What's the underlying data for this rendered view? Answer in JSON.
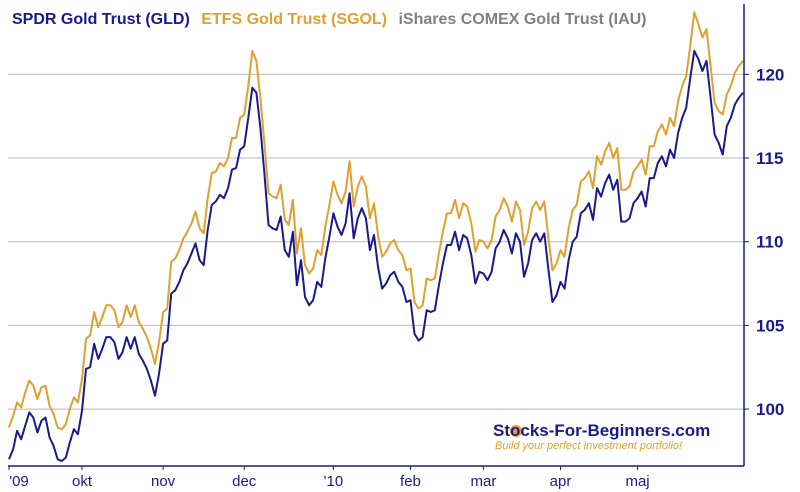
{
  "chart_data": {
    "type": "line",
    "title_parts": [
      {
        "text": "SPDR Gold Trust (GLD)",
        "color": "#1a1a8c"
      },
      {
        "text": "ETFS Gold Trust (SGOL)",
        "color": "#e0a030"
      },
      {
        "text": "iShares COMEX Gold Trust (IAU)",
        "color": "#808080"
      }
    ],
    "x_tick_labels": [
      "'09",
      "okt",
      "nov",
      "dec",
      "'10",
      "feb",
      "mar",
      "apr",
      "maj"
    ],
    "x_tick_index": [
      0,
      18,
      38,
      58,
      80,
      99,
      117,
      136,
      155
    ],
    "y_ticks": [
      100,
      105,
      110,
      115,
      120
    ],
    "ylim": [
      96.6,
      124.2
    ],
    "grid": true,
    "y_axis_side": "right",
    "series": [
      {
        "name": "SPDR Gold Trust (GLD)",
        "color": "#1a1a8c",
        "values": [
          97.0,
          97.6,
          98.7,
          98.2,
          99.0,
          99.8,
          99.5,
          98.6,
          99.3,
          99.5,
          98.3,
          97.8,
          97.0,
          96.9,
          97.1,
          98.0,
          98.8,
          98.5,
          99.9,
          102.4,
          102.5,
          103.9,
          103.0,
          103.6,
          104.3,
          104.3,
          104.0,
          103.0,
          103.4,
          104.3,
          103.6,
          104.3,
          103.3,
          102.9,
          102.4,
          101.7,
          100.8,
          102.1,
          103.9,
          104.1,
          106.9,
          107.1,
          107.6,
          108.3,
          108.7,
          109.3,
          109.9,
          108.9,
          108.6,
          110.7,
          112.2,
          112.4,
          112.8,
          112.6,
          113.2,
          114.3,
          114.4,
          115.5,
          115.7,
          117.4,
          119.2,
          118.9,
          116.8,
          114.0,
          111.0,
          110.8,
          110.7,
          111.5,
          109.5,
          109.1,
          110.6,
          107.4,
          108.9,
          106.7,
          106.2,
          106.5,
          107.6,
          107.3,
          109.0,
          110.3,
          111.7,
          110.9,
          110.4,
          111.1,
          112.9,
          110.2,
          111.4,
          112.0,
          111.4,
          109.5,
          110.4,
          108.5,
          107.2,
          107.5,
          108.0,
          108.2,
          107.6,
          107.3,
          106.4,
          106.5,
          104.5,
          104.1,
          104.3,
          105.9,
          105.8,
          105.9,
          107.4,
          108.7,
          109.8,
          109.8,
          110.6,
          109.5,
          110.4,
          110.2,
          109.2,
          107.5,
          108.2,
          108.1,
          107.7,
          108.2,
          109.6,
          110.0,
          110.7,
          110.2,
          109.3,
          110.5,
          110.0,
          107.9,
          108.7,
          110.1,
          110.5,
          110.0,
          110.5,
          108.4,
          106.4,
          106.8,
          107.6,
          107.2,
          108.9,
          110.0,
          110.3,
          111.7,
          111.9,
          112.3,
          111.3,
          113.2,
          112.7,
          113.5,
          114.0,
          113.1,
          113.7,
          111.2,
          111.2,
          111.4,
          112.3,
          112.6,
          113.0,
          112.1,
          113.8,
          113.8,
          114.7,
          115.1,
          114.5,
          115.5,
          115.0,
          116.5,
          117.4,
          118.0,
          119.8,
          121.4,
          120.9,
          120.2,
          120.8,
          118.6,
          116.4,
          115.9,
          115.2,
          116.9,
          117.4,
          118.2,
          118.6,
          118.9
        ]
      },
      {
        "name": "ETFS Gold Trust (SGOL)",
        "color": "#e0a030",
        "values": [
          98.9,
          99.6,
          100.4,
          100.1,
          101.0,
          101.7,
          101.4,
          100.6,
          101.3,
          101.4,
          100.2,
          99.7,
          98.9,
          98.8,
          99.1,
          100.0,
          100.7,
          100.4,
          101.8,
          104.2,
          104.4,
          105.8,
          104.9,
          105.5,
          106.2,
          106.2,
          105.9,
          104.9,
          105.2,
          106.2,
          105.5,
          106.2,
          105.2,
          104.8,
          104.3,
          103.6,
          102.7,
          104.0,
          105.8,
          106.0,
          108.8,
          109.0,
          109.5,
          110.2,
          110.6,
          111.1,
          111.8,
          110.8,
          110.5,
          112.6,
          114.1,
          114.2,
          114.7,
          114.5,
          115.0,
          116.2,
          116.2,
          117.4,
          117.6,
          119.3,
          121.4,
          120.8,
          118.6,
          115.8,
          112.9,
          112.7,
          112.6,
          113.4,
          111.3,
          111.0,
          112.5,
          109.3,
          110.8,
          108.6,
          108.1,
          108.4,
          109.5,
          109.2,
          110.9,
          112.2,
          113.6,
          112.8,
          112.3,
          113.0,
          114.8,
          112.1,
          113.3,
          113.9,
          113.3,
          111.4,
          112.3,
          110.4,
          109.1,
          109.4,
          109.9,
          110.1,
          109.5,
          109.2,
          108.3,
          108.4,
          106.4,
          106.0,
          106.2,
          107.8,
          107.7,
          107.8,
          109.3,
          110.6,
          111.7,
          111.7,
          112.5,
          111.4,
          112.3,
          112.1,
          111.1,
          109.4,
          110.1,
          110.0,
          109.6,
          110.1,
          111.5,
          111.9,
          112.6,
          112.1,
          111.2,
          112.4,
          111.9,
          109.8,
          110.6,
          112.0,
          112.4,
          111.9,
          112.4,
          110.3,
          108.3,
          108.7,
          109.5,
          109.1,
          110.8,
          111.9,
          112.2,
          113.6,
          113.8,
          114.2,
          113.2,
          115.1,
          114.6,
          115.4,
          115.9,
          115.0,
          115.6,
          113.1,
          113.1,
          113.3,
          114.2,
          114.5,
          114.9,
          114.0,
          115.7,
          115.7,
          116.6,
          117.0,
          116.4,
          117.4,
          116.9,
          118.4,
          119.3,
          119.9,
          121.7,
          123.7,
          123.0,
          122.2,
          122.7,
          120.5,
          118.3,
          117.8,
          117.6,
          118.8,
          119.3,
          120.1,
          120.5,
          120.8
        ]
      }
    ],
    "watermark": {
      "brand": "Stocks-For-Beginners.com",
      "tagline": "Build your perfect investment portfolio!"
    }
  }
}
